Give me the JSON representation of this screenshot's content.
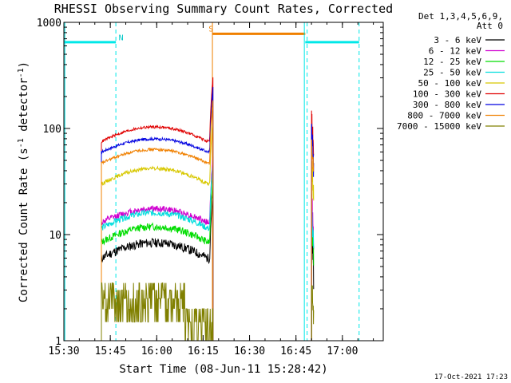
{
  "chart_data": {
    "type": "line",
    "title": "RHESSI Observing Summary Count Rates, Corrected",
    "xlabel": "Start Time (08-Jun-11 15:28:42)",
    "ylabel": "Corrected Count Rate (s",
    "ylabel_sup1": "-1",
    "ylabel_mid": " detector",
    "ylabel_sup2": "-1",
    "ylabel_end": ")",
    "yscale": "log",
    "ylim": [
      1,
      1000
    ],
    "xlim_min": [
      15.5,
      17.22
    ],
    "x_ticks": [
      {
        "t": 15.5,
        "label": "15:30"
      },
      {
        "t": 15.75,
        "label": "15:45"
      },
      {
        "t": 16.0,
        "label": "16:00"
      },
      {
        "t": 16.25,
        "label": "16:15"
      },
      {
        "t": 16.5,
        "label": "16:30"
      },
      {
        "t": 16.75,
        "label": "16:45"
      },
      {
        "t": 17.0,
        "label": "17:00"
      }
    ],
    "y_ticks": [
      {
        "v": 1,
        "label": "1"
      },
      {
        "v": 10,
        "label": "10"
      },
      {
        "v": 100,
        "label": "100"
      },
      {
        "v": 1000,
        "label": "1000"
      }
    ],
    "legend_header": [
      "Det 1,3,4,5,6,9,",
      "Att 0"
    ],
    "legend_position": "right",
    "series": [
      {
        "name": "3 - 6 keV",
        "color": "#000000",
        "base": 6.0,
        "amp": 0.4,
        "noise": 0.1,
        "seed": 11
      },
      {
        "name": "6 - 12 keV",
        "color": "#d000d0",
        "base": 13.0,
        "amp": 0.35,
        "noise": 0.07,
        "seed": 12
      },
      {
        "name": "12 - 25 keV",
        "color": "#00dd00",
        "base": 8.5,
        "amp": 0.4,
        "noise": 0.08,
        "seed": 13
      },
      {
        "name": "25 - 50 keV",
        "color": "#00dddd",
        "base": 11.5,
        "amp": 0.4,
        "noise": 0.07,
        "seed": 14
      },
      {
        "name": "50 - 100 keV",
        "color": "#d8c800",
        "base": 30.0,
        "amp": 0.4,
        "noise": 0.04,
        "seed": 15
      },
      {
        "name": "100 - 300 keV",
        "color": "#e00000",
        "base": 75.0,
        "amp": 0.38,
        "noise": 0.03,
        "seed": 16
      },
      {
        "name": "300 - 800 keV",
        "color": "#0000e0",
        "base": 60.0,
        "amp": 0.33,
        "noise": 0.03,
        "seed": 17
      },
      {
        "name": "800 - 7000 keV",
        "color": "#f08000",
        "base": 47.0,
        "amp": 0.35,
        "noise": 0.03,
        "seed": 18
      },
      {
        "name": "7000 - 15000 keV",
        "color": "#808000",
        "base": 2.2,
        "amp": 0.3,
        "noise": 0.35,
        "seed": 19
      }
    ],
    "segments": [
      [
        15.702,
        16.303
      ],
      [
        16.834,
        16.845
      ]
    ],
    "night_bars": [
      [
        15.5,
        15.78,
        650
      ],
      [
        16.8,
        17.09,
        650
      ]
    ],
    "saa_bar": [
      16.3,
      16.8,
      780
    ],
    "night_color": "#00e8e8",
    "saa_color": "#f08000",
    "vlines_solid_cyan": [
      15.505,
      16.795
    ],
    "vlines_dashed_cyan": [
      15.78,
      16.81,
      17.09
    ],
    "vline_solid_orange": 16.3,
    "flag_labels": [
      {
        "text": "N",
        "t": 15.795,
        "v": 680,
        "color": "#00c8c8"
      },
      {
        "text": "S",
        "t": 16.28,
        "v": 820,
        "color": "#f08000"
      }
    ],
    "footer_timestamp": "17-Oct-2021 17:23"
  }
}
